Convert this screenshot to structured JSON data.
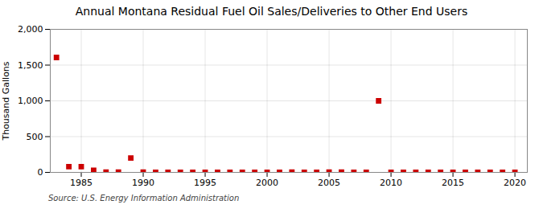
{
  "chart_data": {
    "type": "scatter",
    "title": "Annual Montana Residual Fuel Oil Sales/Deliveries to Other End Users",
    "ylabel": "Thousand Gallons",
    "annotations": [
      "Source: U.S. Energy Information Administration"
    ],
    "x": [
      1983,
      1984,
      1985,
      1986,
      1987,
      1988,
      1989,
      1990,
      1991,
      1992,
      1993,
      1994,
      1995,
      1996,
      1997,
      1998,
      1999,
      2000,
      2001,
      2002,
      2003,
      2004,
      2005,
      2006,
      2007,
      2008,
      2009,
      2010,
      2011,
      2012,
      2013,
      2014,
      2015,
      2016,
      2017,
      2018,
      2019,
      2020
    ],
    "values": [
      1607,
      80,
      80,
      30,
      5,
      3,
      200,
      3,
      2,
      1,
      1,
      1,
      1,
      1,
      1,
      1,
      1,
      1,
      1,
      3,
      1,
      1,
      3,
      3,
      1,
      1,
      1000,
      1,
      1,
      1,
      1,
      1,
      1,
      1,
      1,
      1,
      1,
      1
    ],
    "color": "#cc0000",
    "marker": "square",
    "xlim": [
      1982.5,
      2021
    ],
    "xticks": [
      1985,
      1990,
      1995,
      2000,
      2005,
      2010,
      2015,
      2020
    ],
    "ylim": [
      0,
      2000
    ],
    "yticks": [
      0,
      500,
      {
        "value": 1000,
        "label": "1,000"
      },
      {
        "value": 1500,
        "label": "1,500"
      },
      {
        "value": 2000,
        "label": "2,000"
      }
    ],
    "grid": true
  }
}
